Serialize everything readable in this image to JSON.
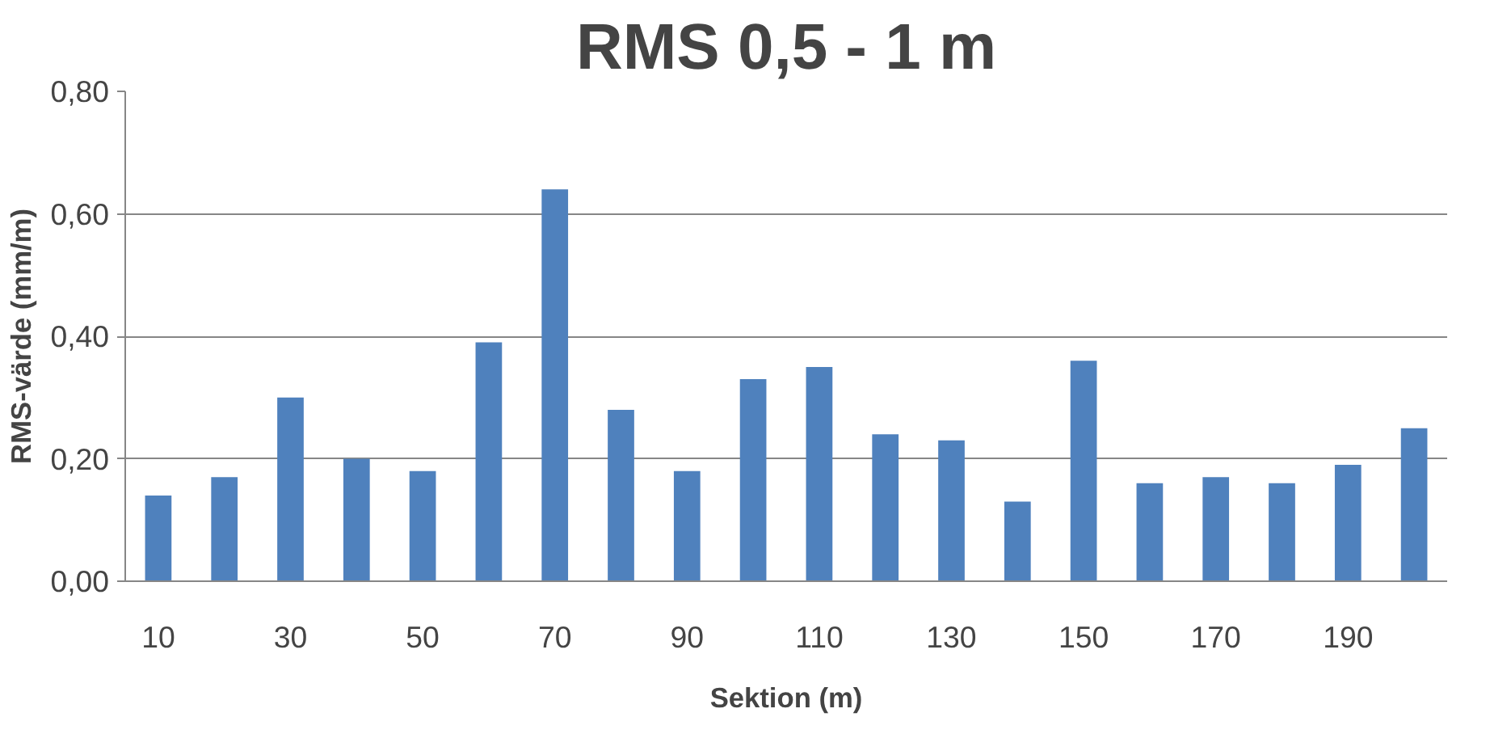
{
  "chart_data": {
    "type": "bar",
    "title": "RMS 0,5 - 1 m",
    "xlabel": "Sektion (m)",
    "ylabel": "RMS-värde (mm/m)",
    "categories": [
      "10",
      null,
      "30",
      null,
      "50",
      null,
      "70",
      null,
      "90",
      null,
      "110",
      null,
      "130",
      null,
      "150",
      null,
      "170",
      null,
      "190",
      null
    ],
    "values": [
      0.14,
      0.17,
      0.3,
      0.2,
      0.18,
      0.39,
      0.64,
      0.28,
      0.18,
      0.33,
      0.35,
      0.24,
      0.23,
      0.13,
      0.36,
      0.16,
      0.17,
      0.16,
      0.19,
      0.25
    ],
    "color": "#4f81bd",
    "ylim": [
      0,
      0.8
    ],
    "yticks": [
      {
        "value": 0,
        "label": "0,00"
      },
      {
        "value": 0.2,
        "label": "0,20"
      },
      {
        "value": 0.4,
        "label": "0,40"
      },
      {
        "value": 0.6,
        "label": "0,60"
      },
      {
        "value": 0.8,
        "label": "0,80"
      }
    ],
    "grid": "y"
  }
}
